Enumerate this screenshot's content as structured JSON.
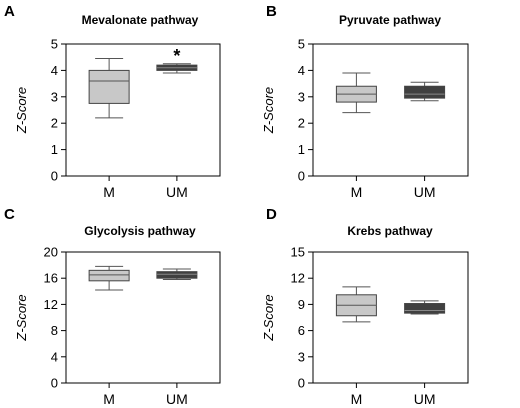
{
  "chart_data": [
    {
      "panel": "A",
      "type": "box",
      "title": "Mevalonate pathway",
      "ylabel": "Z-Score",
      "ylim": [
        0,
        5
      ],
      "yticks": [
        0,
        1,
        2,
        3,
        4,
        5
      ],
      "categories": [
        "M",
        "UM"
      ],
      "boxes": [
        {
          "whisker_low": 2.2,
          "q1": 2.75,
          "median": 3.6,
          "q3": 4.0,
          "whisker_high": 4.45,
          "color": "#c8c8c8"
        },
        {
          "whisker_low": 3.9,
          "q1": 4.0,
          "median": 4.1,
          "q3": 4.2,
          "whisker_high": 4.25,
          "color": "#404040"
        }
      ],
      "annotation": {
        "category": "UM",
        "text": "*"
      }
    },
    {
      "panel": "B",
      "type": "box",
      "title": "Pyruvate pathway",
      "ylabel": "Z-Score",
      "ylim": [
        0,
        5
      ],
      "yticks": [
        0,
        1,
        2,
        3,
        4,
        5
      ],
      "categories": [
        "M",
        "UM"
      ],
      "boxes": [
        {
          "whisker_low": 2.4,
          "q1": 2.8,
          "median": 3.1,
          "q3": 3.4,
          "whisker_high": 3.9,
          "color": "#c8c8c8"
        },
        {
          "whisker_low": 2.85,
          "q1": 2.95,
          "median": 3.1,
          "q3": 3.4,
          "whisker_high": 3.55,
          "color": "#404040"
        }
      ]
    },
    {
      "panel": "C",
      "type": "box",
      "title": "Glycolysis pathway",
      "ylabel": "Z-Score",
      "ylim": [
        0,
        20
      ],
      "yticks": [
        0,
        4,
        8,
        12,
        16,
        20
      ],
      "categories": [
        "M",
        "UM"
      ],
      "boxes": [
        {
          "whisker_low": 14.2,
          "q1": 15.6,
          "median": 16.5,
          "q3": 17.2,
          "whisker_high": 17.8,
          "color": "#c8c8c8"
        },
        {
          "whisker_low": 15.8,
          "q1": 16.0,
          "median": 16.6,
          "q3": 17.0,
          "whisker_high": 17.4,
          "color": "#404040"
        }
      ]
    },
    {
      "panel": "D",
      "type": "box",
      "title": "Krebs pathway",
      "ylabel": "Z-Score",
      "ylim": [
        0,
        15
      ],
      "yticks": [
        0,
        3,
        6,
        9,
        12,
        15
      ],
      "categories": [
        "M",
        "UM"
      ],
      "boxes": [
        {
          "whisker_low": 7.0,
          "q1": 7.7,
          "median": 8.9,
          "q3": 10.1,
          "whisker_high": 11.0,
          "color": "#c8c8c8"
        },
        {
          "whisker_low": 7.9,
          "q1": 8.0,
          "median": 8.3,
          "q3": 9.1,
          "whisker_high": 9.4,
          "color": "#404040"
        }
      ]
    }
  ]
}
